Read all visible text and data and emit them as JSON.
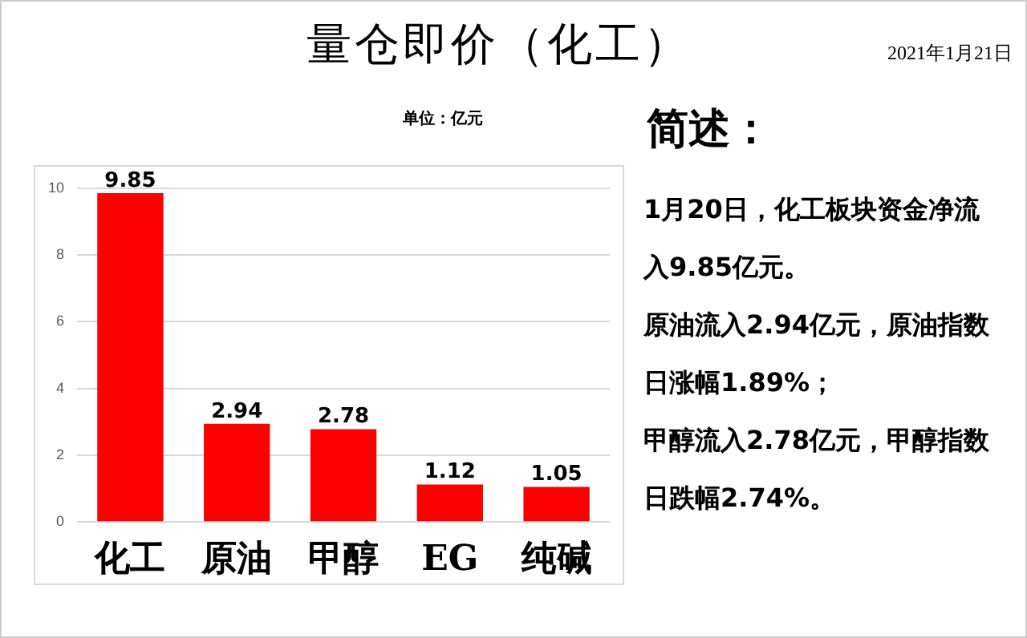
{
  "chart_data": {
    "type": "bar",
    "title": "量仓即价（化工）",
    "categories": [
      "化工",
      "原油",
      "甲醇",
      "EG",
      "纯碱"
    ],
    "values": [
      9.85,
      2.94,
      2.78,
      1.12,
      1.05
    ],
    "color": "#ff0000",
    "ylim": [
      0,
      10
    ],
    "yticks": [
      0,
      2,
      4,
      6,
      8,
      10
    ],
    "grid": "y",
    "data_labels": true,
    "legend": false,
    "annotations": [
      "单位：亿元",
      "2021年1月21日",
      "简述：",
      "1月20日，化工板块资金净流入9.85亿元。",
      "原油流入2.94亿元，原油指数日涨幅1.89%；",
      "甲醇流入2.78亿元，甲醇指数日跌幅2.74%。"
    ]
  }
}
